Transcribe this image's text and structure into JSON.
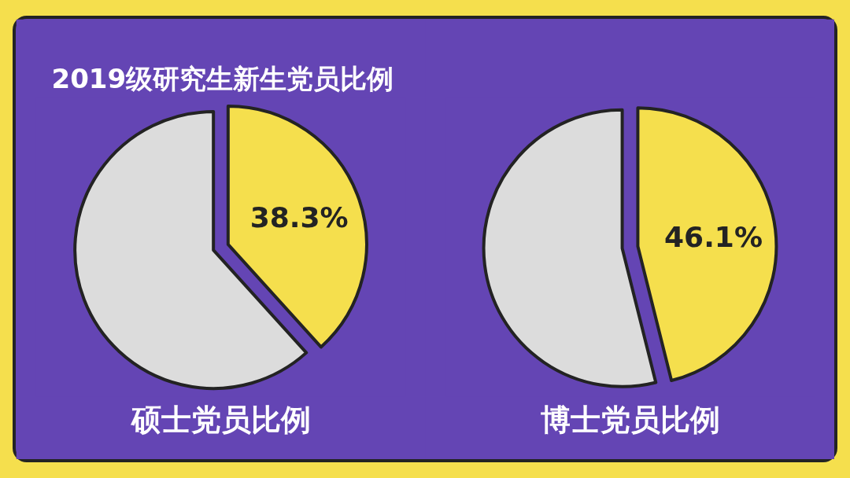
{
  "chart_data": [
    {
      "type": "pie",
      "title": "2019级研究生新生党员比例",
      "xlabel": "硕士党员比例",
      "categories": [
        null,
        null
      ],
      "values": [
        38.3,
        61.7
      ],
      "colors": [
        "#f5df4d",
        "#dcdcdc"
      ],
      "value_labels": [
        "38.3%",
        null
      ]
    },
    {
      "type": "pie",
      "xlabel": "博士党员比例",
      "categories": [
        null,
        null
      ],
      "values": [
        46.1,
        53.9
      ],
      "colors": [
        "#f5df4d",
        "#dcdcdc"
      ],
      "value_labels": [
        "46.1%",
        null
      ]
    }
  ]
}
